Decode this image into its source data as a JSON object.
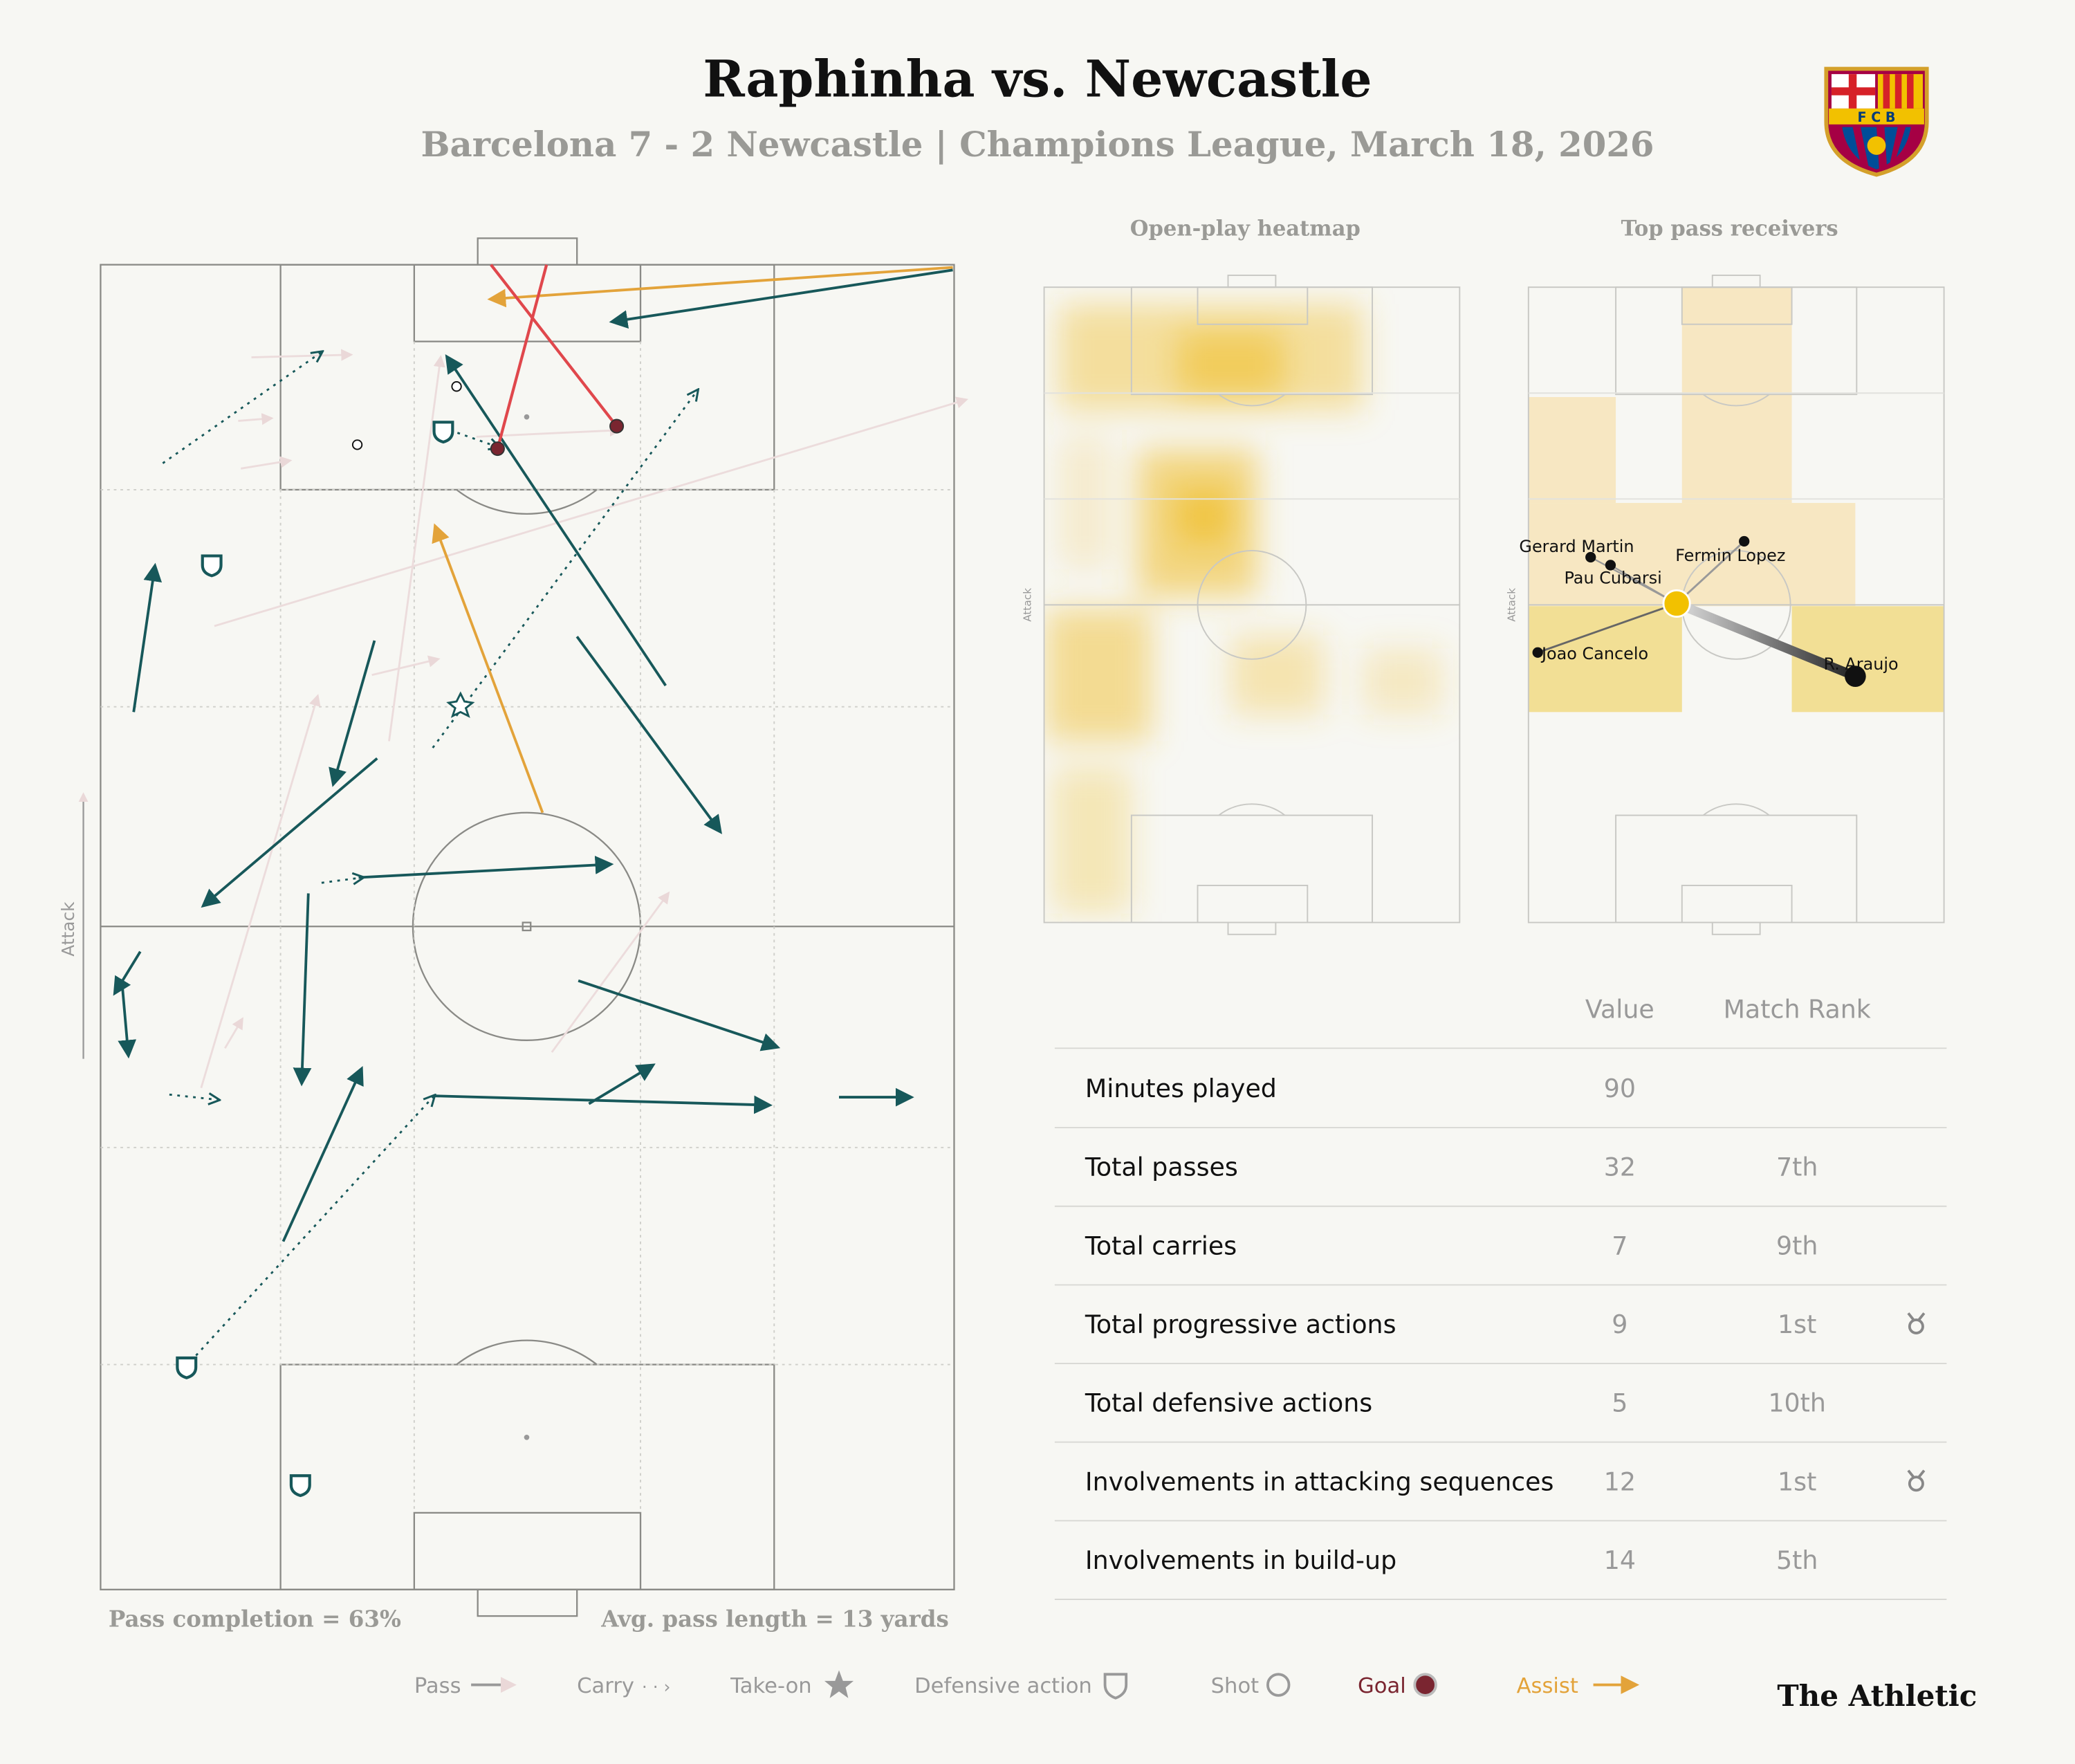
{
  "header": {
    "title": "Raphinha vs. Newcastle",
    "subtitle": "Barcelona 7 - 2 Newcastle | Champions League, March 18, 2026"
  },
  "pitch": {
    "attack_label": "Attack",
    "pass_completion": "Pass completion = 63%",
    "avg_pass_length": "Avg. pass length = 13 yards"
  },
  "heatmap": {
    "title": "Open-play heatmap",
    "attack_label": "Attack"
  },
  "receivers": {
    "title": "Top pass receivers",
    "attack_label": "Attack",
    "players": [
      "Gerard Martin",
      "Pau Cubarsi",
      "Fermin Lopez",
      "Joao Cancelo",
      "R. Araujo"
    ]
  },
  "stats": {
    "columns": [
      "Value",
      "Match Rank"
    ],
    "rows": [
      {
        "label": "Minutes played",
        "value": "90",
        "rank": null
      },
      {
        "label": "Total passes",
        "value": "32",
        "rank": "7th"
      },
      {
        "label": "Total carries",
        "value": "7",
        "rank": "9th"
      },
      {
        "label": "Total progressive actions",
        "value": "9",
        "rank": "1st"
      },
      {
        "label": "Total defensive actions",
        "value": "5",
        "rank": "10th"
      },
      {
        "label": "Involvements in attacking sequences",
        "value": "12",
        "rank": "1st"
      },
      {
        "label": "Involvements in build-up",
        "value": "14",
        "rank": "5th"
      }
    ]
  },
  "legend": {
    "items": [
      "Pass",
      "Carry",
      "Take-on",
      "Defensive action",
      "Shot",
      "Goal",
      "Assist"
    ]
  },
  "brand": "The Athletic"
}
